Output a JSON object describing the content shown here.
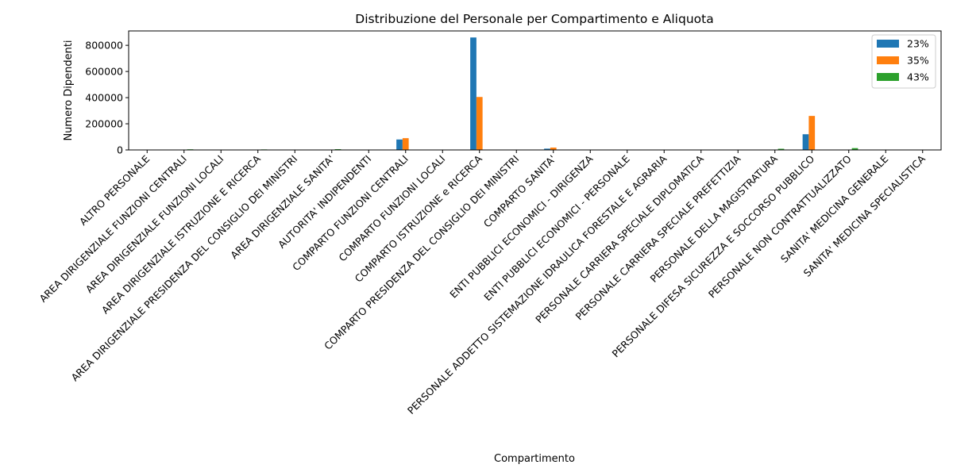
{
  "chart_data": {
    "type": "bar",
    "title": "Distribuzione del Personale per Compartimento e Aliquota",
    "xlabel": "Compartimento",
    "ylabel": "Numero Dipendenti",
    "ylim": [
      0,
      910000
    ],
    "yticks": [
      0,
      200000,
      400000,
      600000,
      800000
    ],
    "ytick_labels": [
      "0",
      "200000",
      "400000",
      "600000",
      "800000"
    ],
    "legend_position": "top-right",
    "categories": [
      "ALTRO PERSONALE",
      "AREA DIRIGENZIALE FUNZIONI CENTRALI",
      "AREA DIRIGENZIALE FUNZIONI LOCALI",
      "AREA DIRIGENZIALE ISTRUZIONE E RICERCA",
      "AREA DIRIGENZIALE PRESIDENZA DEL CONSIGLIO DEI MINISTRI",
      "AREA DIRIGENZIALE SANITA'",
      "AUTORITA' INDIPENDENTI",
      "COMPARTO FUNZIONI CENTRALI",
      "COMPARTO FUNZIONI LOCALI",
      "COMPARTO ISTRUZIONE e RICERCA",
      "COMPARTO PRESIDENZA DEL CONSIGLIO DEI MINISTRI",
      "COMPARTO SANITA'",
      "ENTI PUBBLICI ECONOMICI - DIRIGENZA",
      "ENTI PUBBLICI ECONOMICI - PERSONALE",
      "PERSONALE ADDETTO SISTEMAZIONE IDRAULICA FORESTALE E AGRARIA",
      "PERSONALE CARRIERA SPECIALE DIPLOMATICA",
      "PERSONALE CARRIERA SPECIALE PREFETTIZIA",
      "PERSONALE DELLA MAGISTRATURA",
      "PERSONALE DIFESA  SICUREZZA E SOCCORSO PUBBLICO",
      "PERSONALE NON CONTRATTUALIZZATO",
      "SANITA' MEDICINA GENERALE",
      "SANITA' MEDICINA SPECIALISTICA"
    ],
    "series": [
      {
        "name": "23%",
        "color": "#1f77b4",
        "values": [
          0,
          0,
          0,
          0,
          0,
          0,
          0,
          80000,
          0,
          860000,
          0,
          10000,
          0,
          0,
          0,
          0,
          0,
          0,
          120000,
          0,
          0,
          0
        ]
      },
      {
        "name": "35%",
        "color": "#ff7f0e",
        "values": [
          0,
          0,
          0,
          0,
          0,
          0,
          0,
          90000,
          0,
          405000,
          0,
          18000,
          0,
          0,
          0,
          0,
          0,
          0,
          260000,
          0,
          0,
          0
        ]
      },
      {
        "name": "43%",
        "color": "#2ca02c",
        "values": [
          0,
          5000,
          0,
          4000,
          0,
          6000,
          0,
          0,
          0,
          0,
          0,
          0,
          0,
          0,
          0,
          0,
          0,
          9000,
          0,
          14000,
          0,
          0
        ]
      }
    ]
  }
}
